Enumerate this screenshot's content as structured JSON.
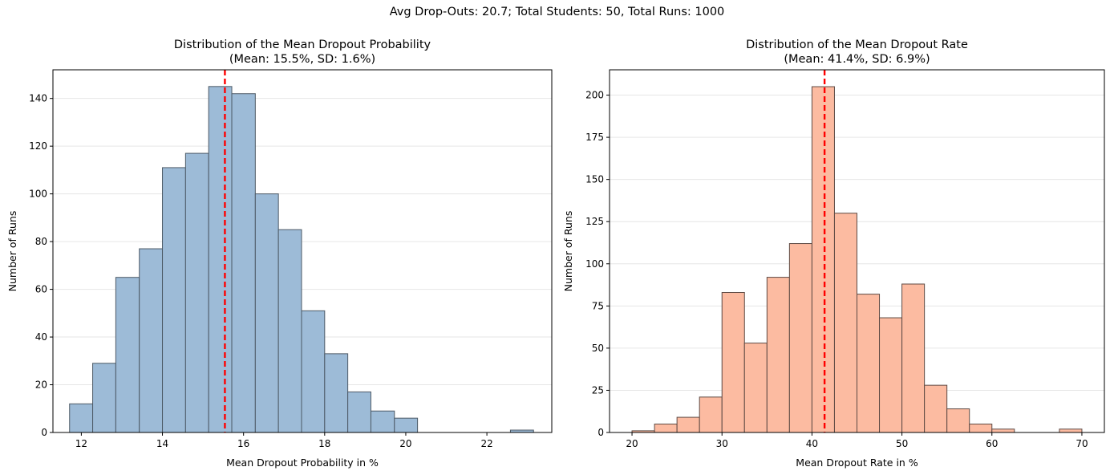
{
  "suptitle": "Avg Drop-Outs: 20.7; Total Students: 50, Total Runs: 1000",
  "chart_data": [
    {
      "type": "bar",
      "title": "Distribution of the Mean Dropout Probability",
      "subtitle": "(Mean: 15.5%, SD: 1.6%)",
      "xlabel": "Mean Dropout Probability in %",
      "ylabel": "Number of Runs",
      "xlim": [
        11.3,
        23.6
      ],
      "ylim": [
        0,
        152
      ],
      "xticks": [
        12,
        14,
        16,
        18,
        20,
        22
      ],
      "yticks": [
        0,
        20,
        40,
        60,
        80,
        100,
        120,
        140
      ],
      "grid": "y",
      "bar_color": "#9dbbd7",
      "edge_color": "#4d5a66",
      "mean_line": 15.54,
      "mean_line_color": "#ff0000",
      "bin_edges": [
        11.71,
        12.28,
        12.85,
        13.43,
        14.0,
        14.57,
        15.14,
        15.71,
        16.29,
        16.86,
        17.43,
        18.0,
        18.57,
        19.14,
        19.72,
        20.29,
        20.86,
        21.43,
        22.0,
        22.58,
        23.15
      ],
      "values": [
        12,
        29,
        65,
        77,
        111,
        117,
        145,
        142,
        100,
        85,
        51,
        33,
        17,
        9,
        6,
        0,
        0,
        0,
        0,
        1
      ]
    },
    {
      "type": "bar",
      "title": "Distribution of the Mean Dropout Rate",
      "subtitle": "(Mean: 41.4%, SD: 6.9%)",
      "xlabel": "Mean Dropout Rate in %",
      "ylabel": "Number of Runs",
      "xlim": [
        17.5,
        72.5
      ],
      "ylim": [
        0,
        215
      ],
      "xticks": [
        20,
        30,
        40,
        50,
        60,
        70
      ],
      "yticks": [
        0,
        25,
        50,
        75,
        100,
        125,
        150,
        175,
        200
      ],
      "grid": "y",
      "bar_color": "#fcbba1",
      "edge_color": "#5e4a44",
      "mean_line": 41.4,
      "mean_line_color": "#ff0000",
      "bin_edges": [
        20,
        22.5,
        25,
        27.5,
        30,
        32.5,
        35,
        37.5,
        40,
        42.5,
        45,
        47.5,
        50,
        52.5,
        55,
        57.5,
        60,
        62.5,
        65,
        67.5,
        70
      ],
      "values": [
        1,
        5,
        9,
        21,
        83,
        53,
        92,
        112,
        205,
        130,
        82,
        68,
        88,
        28,
        14,
        5,
        2,
        0,
        0,
        2
      ]
    }
  ]
}
